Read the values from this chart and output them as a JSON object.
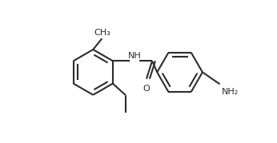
{
  "bg_color": "#ffffff",
  "line_color": "#2d2d2d",
  "line_width": 1.5,
  "text_color": "#2d2d2d",
  "font_size": 8.0,
  "figsize": [
    3.46,
    1.79
  ],
  "dpi": 100,
  "xlim": [
    0.0,
    5.8
  ],
  "ylim": [
    -0.3,
    3.2
  ]
}
